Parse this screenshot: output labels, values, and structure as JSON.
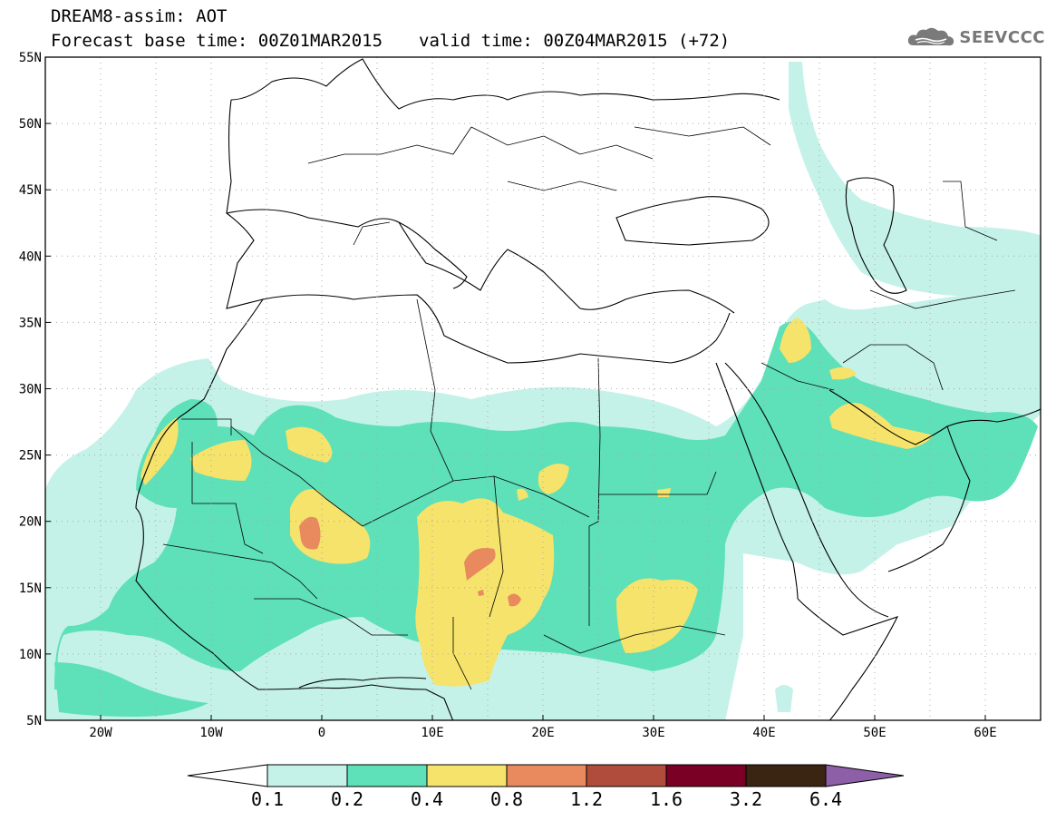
{
  "header": {
    "title": "DREAM8-assim: AOT",
    "base_time": "Forecast base time: 00Z01MAR2015",
    "valid_time": "valid time: 00Z04MAR2015 (+72)"
  },
  "logo": {
    "text": "SEEVCCC",
    "icon": "cloud-icon"
  },
  "axes": {
    "lat_labels": [
      "55N",
      "50N",
      "45N",
      "40N",
      "35N",
      "30N",
      "25N",
      "20N",
      "15N",
      "10N",
      "5N"
    ],
    "lon_labels": [
      "20W",
      "10W",
      "0",
      "10E",
      "20E",
      "30E",
      "40E",
      "50E",
      "60E"
    ]
  },
  "colorbar": {
    "labels": [
      "0.1",
      "0.2",
      "0.4",
      "0.8",
      "1.2",
      "1.6",
      "3.2",
      "6.4"
    ],
    "colors": [
      "#ffffff",
      "#c4f2e8",
      "#5ee0b8",
      "#f5e36b",
      "#e88a5e",
      "#b04c3c",
      "#7a0026",
      "#3a2412",
      "#8c5fa6"
    ]
  },
  "field_colors": {
    "l1": "#c4f2e8",
    "l2": "#5ee0b8",
    "l3": "#f5e36b",
    "l4": "#e88a5e"
  }
}
